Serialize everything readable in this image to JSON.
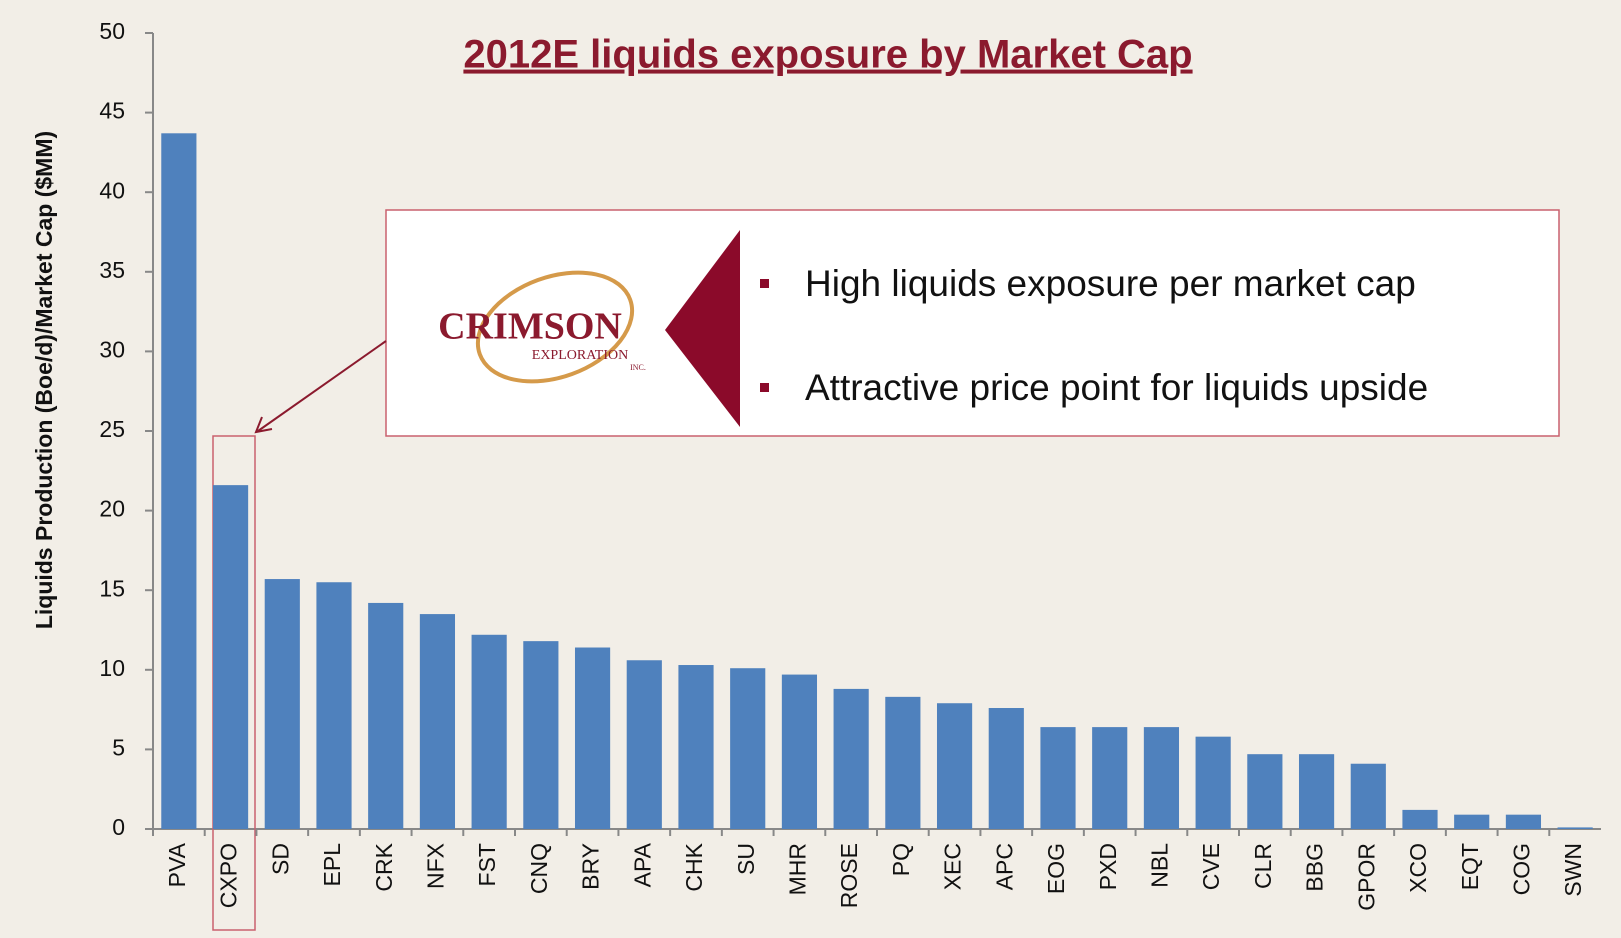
{
  "chart_data": {
    "type": "bar",
    "title": "2012E liquids exposure by Market Cap",
    "y_label": "Liquids Production (Boe/d)/Market Cap ($MM)",
    "categories": [
      "PVA",
      "CXPO",
      "SD",
      "EPL",
      "CRK",
      "NFX",
      "FST",
      "CNQ",
      "BRY",
      "APA",
      "CHK",
      "SU",
      "MHR",
      "ROSE",
      "PQ",
      "XEC",
      "APC",
      "EOG",
      "PXD",
      "NBL",
      "CVE",
      "CLR",
      "BBG",
      "GPOR",
      "XCO",
      "EQT",
      "COG",
      "SWN"
    ],
    "values": [
      43.7,
      21.6,
      15.7,
      15.5,
      14.2,
      13.5,
      12.2,
      11.8,
      11.4,
      10.6,
      10.3,
      10.1,
      9.7,
      8.8,
      8.3,
      7.9,
      7.6,
      6.4,
      6.4,
      6.4,
      5.8,
      4.7,
      4.7,
      4.1,
      1.2,
      0.9,
      0.9,
      0.1
    ],
    "color": "#4f81bd",
    "ylim": [
      0,
      50
    ],
    "yticks": [
      0,
      5,
      10,
      15,
      20,
      25,
      30,
      35,
      40,
      45,
      50
    ],
    "grid": false,
    "callout": {
      "logo_name": "CRIMSON",
      "logo_sub": "EXPLORATION",
      "logo_inc": "INC.",
      "bullets": [
        "High liquids exposure per market cap",
        "Attractive price point for liquids upside"
      ]
    }
  }
}
